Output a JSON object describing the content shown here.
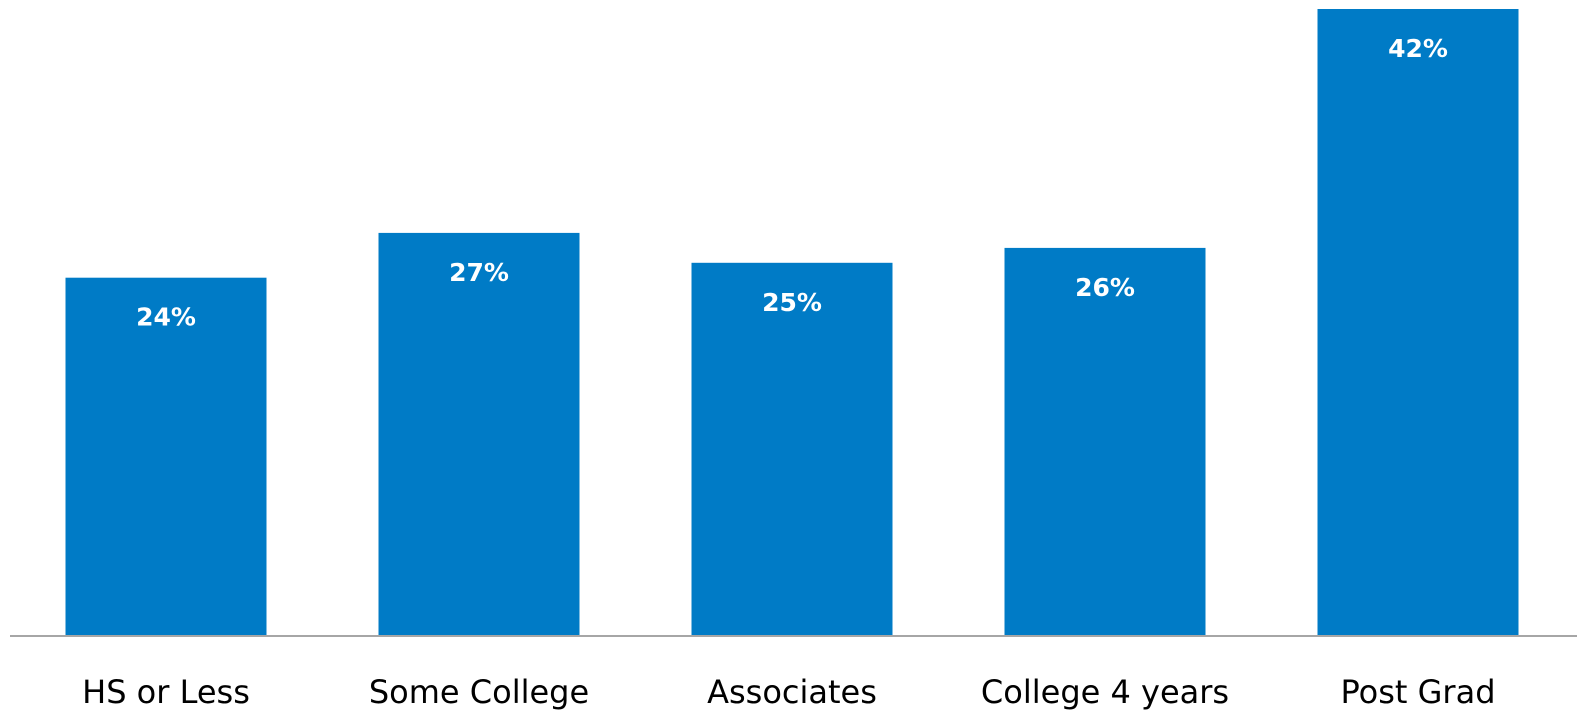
{
  "chart_data": {
    "type": "bar",
    "categories": [
      "HS or Less",
      "Some College",
      "Associates",
      "College 4 years",
      "Post Grad"
    ],
    "values": [
      24,
      27,
      25,
      26,
      42
    ],
    "value_labels": [
      "24%",
      "27%",
      "25%",
      "26%",
      "42%"
    ],
    "value_suffix": "%",
    "title": "",
    "xlabel": "",
    "ylabel": "",
    "ylim": [
      0,
      42
    ],
    "grid": false,
    "legend": "none",
    "colors": {
      "bar": "#007BC6",
      "axis": "#A6A6A6",
      "bar_label": "#FFFFFF",
      "tick_label": "#000000"
    }
  }
}
